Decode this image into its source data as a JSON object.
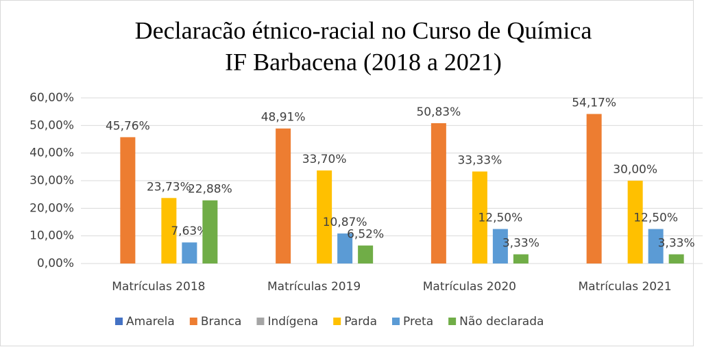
{
  "chart_data": {
    "type": "bar",
    "title": "Declaracão étnico-racial no Curso de Química",
    "subtitle": "IF Barbacena (2018 a 2021)",
    "categories": [
      "Matrículas 2018",
      "Matrículas 2019",
      "Matrículas 2020",
      "Matrículas 2021"
    ],
    "series": [
      {
        "name": "Amarela",
        "color": "#4472c4",
        "values": [
          0,
          0,
          0,
          0
        ]
      },
      {
        "name": "Branca",
        "color": "#ed7d31",
        "values": [
          45.76,
          48.91,
          50.83,
          54.17
        ],
        "value_labels": [
          "45,76%",
          "48,91%",
          "50,83%",
          "54,17%"
        ]
      },
      {
        "name": "Indígena",
        "color": "#a5a5a5",
        "values": [
          0,
          0,
          0,
          0
        ]
      },
      {
        "name": "Parda",
        "color": "#ffc000",
        "values": [
          23.73,
          33.7,
          33.33,
          30.0
        ],
        "value_labels": [
          "23,73%",
          "33,70%",
          "33,33%",
          "30,00%"
        ]
      },
      {
        "name": "Preta",
        "color": "#5b9bd5",
        "values": [
          7.63,
          10.87,
          12.5,
          12.5
        ],
        "value_labels": [
          "7,63%",
          "10,87%",
          "12,50%",
          "12,50%"
        ]
      },
      {
        "name": "Não declarada",
        "color": "#70ad47",
        "values": [
          22.88,
          6.52,
          3.33,
          3.33
        ],
        "value_labels": [
          "22,88%",
          "6,52%",
          "3,33%",
          "3,33%"
        ]
      }
    ],
    "ylim": [
      0,
      60
    ],
    "yticks": [
      {
        "value": 0,
        "label": "0,00%"
      },
      {
        "value": 10,
        "label": "10,00%"
      },
      {
        "value": 20,
        "label": "20,00%"
      },
      {
        "value": 30,
        "label": "30,00%"
      },
      {
        "value": 40,
        "label": "40,00%"
      },
      {
        "value": 50,
        "label": "50,00%"
      },
      {
        "value": 60,
        "label": "60,00%"
      }
    ],
    "grid": true,
    "legend": "bottom"
  }
}
